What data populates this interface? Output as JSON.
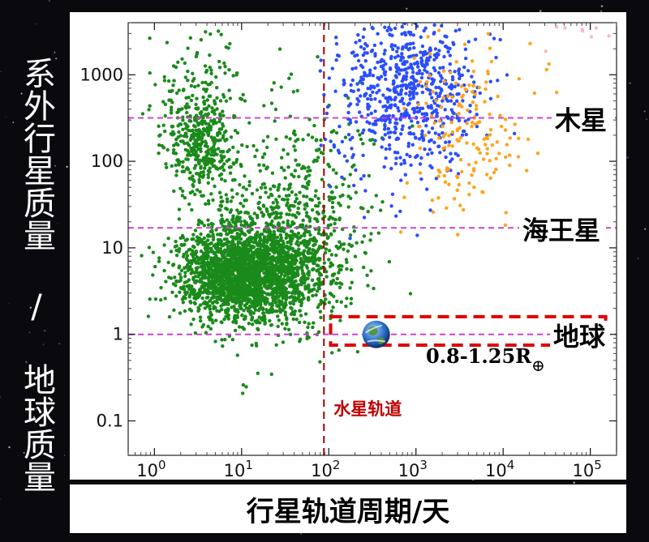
{
  "chart_data": {
    "type": "scatter",
    "xlabel": "行星轨道周期/天",
    "ylabel": "系外行星质量 / 地球质量",
    "xscale": "log",
    "yscale": "log",
    "xlim": [
      0.5,
      200000
    ],
    "ylim": [
      0.04,
      4000
    ],
    "x_ticks": [
      {
        "base": "10",
        "exp": "0",
        "value": 1
      },
      {
        "base": "10",
        "exp": "1",
        "value": 10
      },
      {
        "base": "10",
        "exp": "2",
        "value": 100
      },
      {
        "base": "10",
        "exp": "3",
        "value": 1000
      },
      {
        "base": "10",
        "exp": "4",
        "value": 10000
      },
      {
        "base": "10",
        "exp": "5",
        "value": 100000
      }
    ],
    "y_ticks": [
      {
        "label": "0.1",
        "value": 0.1
      },
      {
        "label": "1",
        "value": 1
      },
      {
        "label": "10",
        "value": 10
      },
      {
        "label": "100",
        "value": 100
      },
      {
        "label": "1000",
        "value": 1000
      }
    ],
    "colors": {
      "green": "#1a8a1a",
      "blue": "#2a4dff",
      "orange": "#ffa31a",
      "pink": "#ffb6c1",
      "reference_lines": "#cc44cc",
      "mercury_line": "#a00000",
      "earth_box": "#e00000"
    },
    "series": [
      {
        "color": "green",
        "clusters": [
          {
            "cx": 3.5,
            "cy": 150,
            "sx": 0.2,
            "sy": 0.28,
            "n": 380
          },
          {
            "cx": 10,
            "cy": 5,
            "sx": 0.36,
            "sy": 0.26,
            "n": 1900
          },
          {
            "cx": 25,
            "cy": 8,
            "sx": 0.45,
            "sy": 0.45,
            "n": 900
          },
          {
            "cx": 3,
            "cy": 700,
            "sx": 0.25,
            "sy": 0.3,
            "n": 120
          },
          {
            "cx": 60,
            "cy": 60,
            "sx": 0.4,
            "sy": 0.55,
            "n": 200
          }
        ],
        "ranges": {
          "x": [
            0.5,
            2000
          ],
          "y": [
            0.15,
            4000
          ]
        }
      },
      {
        "color": "blue",
        "clusters": [
          {
            "cx": 900,
            "cy": 700,
            "sx": 0.38,
            "sy": 0.45,
            "n": 650
          },
          {
            "cx": 250,
            "cy": 200,
            "sx": 0.4,
            "sy": 0.45,
            "n": 80
          }
        ],
        "ranges": {
          "x": [
            60,
            20000
          ],
          "y": [
            3,
            4000
          ]
        }
      },
      {
        "color": "orange",
        "clusters": [
          {
            "cx": 4000,
            "cy": 300,
            "sx": 0.35,
            "sy": 0.55,
            "n": 180
          }
        ],
        "ranges": {
          "x": [
            600,
            60000
          ],
          "y": [
            1.5,
            4000
          ]
        }
      },
      {
        "color": "pink",
        "clusters": [
          {
            "cx": 80000,
            "cy": 2800,
            "sx": 0.25,
            "sy": 0.08,
            "n": 8
          }
        ],
        "ranges": {
          "x": [
            30000,
            200000
          ],
          "y": [
            1500,
            4000
          ]
        }
      }
    ],
    "reference_lines": [
      {
        "label": "木星",
        "y": 318
      },
      {
        "label": "海王星",
        "y": 17
      },
      {
        "label": "地球",
        "y": 1
      }
    ],
    "mercury_orbit": {
      "label": "水星轨道",
      "x": 88
    },
    "earth_box": {
      "x": [
        105,
        150000
      ],
      "y": [
        0.75,
        1.6
      ],
      "label": "0.8-1.25R",
      "subscript": "⊕"
    }
  }
}
